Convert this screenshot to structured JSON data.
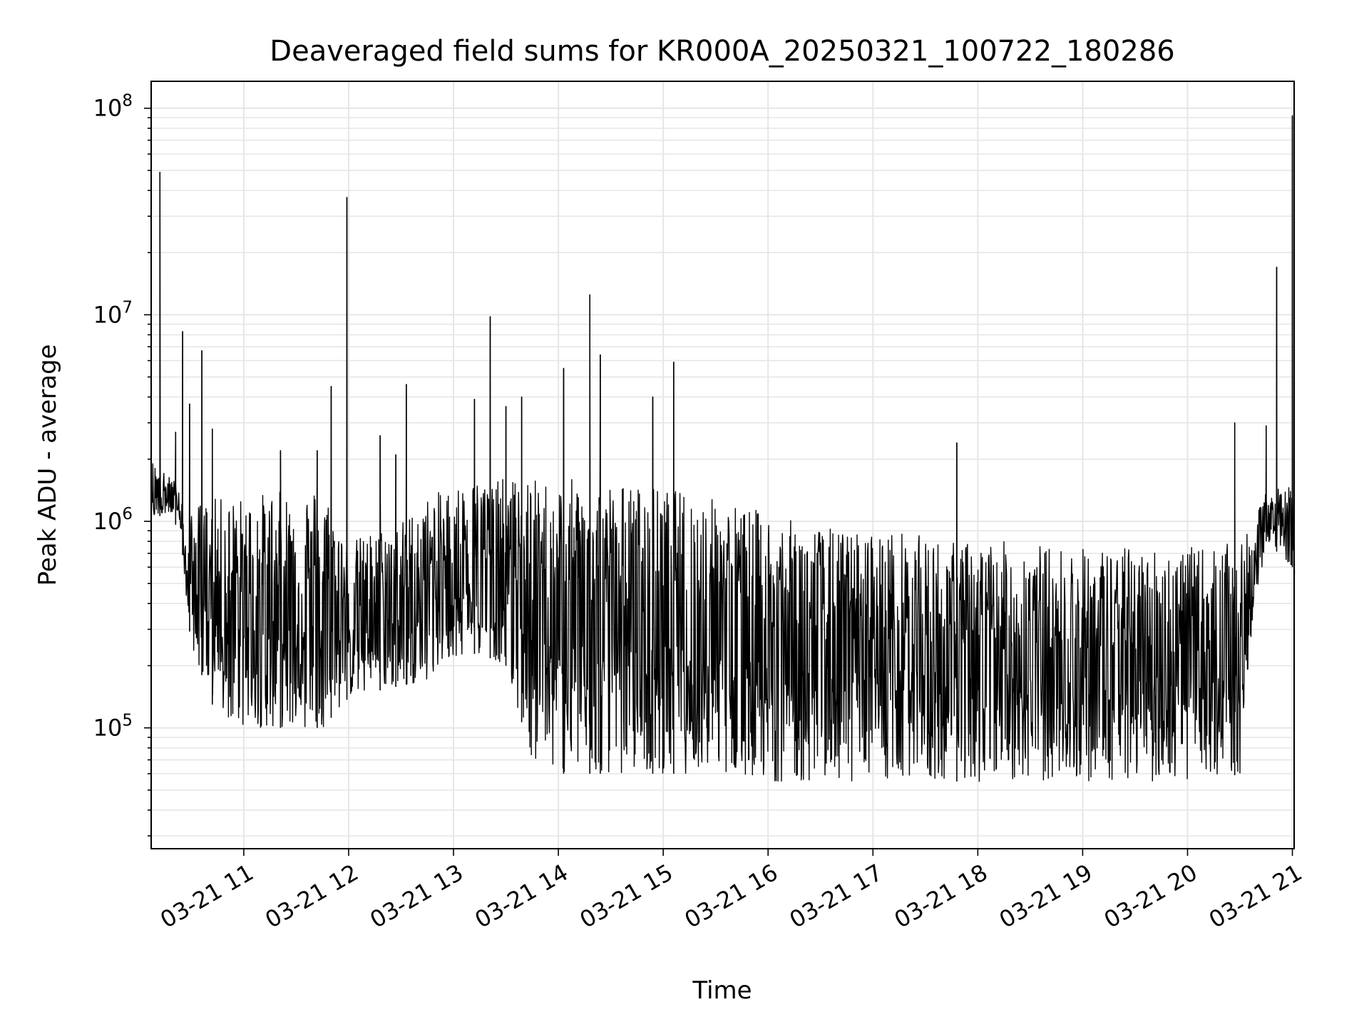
{
  "chart_data": {
    "type": "line",
    "title": "Deaveraged field sums for KR000A_20250321_100722_180286",
    "xlabel": "Time",
    "ylabel": "Peak ADU - average",
    "y_scale": "log",
    "ylim": [
      26000,
      135000000
    ],
    "xlim": [
      "03-21 10:07",
      "03-21 21:01"
    ],
    "grid": "on (major and minor)",
    "line_color": "#000000",
    "x_ticks": [
      "03-21 11",
      "03-21 12",
      "03-21 13",
      "03-21 14",
      "03-21 15",
      "03-21 16",
      "03-21 17",
      "03-21 18",
      "03-21 19",
      "03-21 20",
      "03-21 21"
    ],
    "y_ticks": [
      {
        "base": "10",
        "exp": "5",
        "value": 100000
      },
      {
        "base": "10",
        "exp": "6",
        "value": 1000000
      },
      {
        "base": "10",
        "exp": "7",
        "value": 10000000
      },
      {
        "base": "10",
        "exp": "8",
        "value": 100000000
      }
    ],
    "series": [
      {
        "envelope_hours": [
          10.12,
          10.25,
          10.4,
          10.45,
          10.5,
          10.75,
          11.0,
          11.25,
          11.5,
          11.75,
          12.0,
          12.25,
          12.5,
          12.75,
          13.0,
          13.25,
          13.5,
          13.75,
          14.0,
          14.25,
          14.5,
          14.75,
          15.0,
          15.25,
          15.5,
          15.75,
          16.0,
          16.25,
          16.5,
          16.75,
          17.0,
          17.25,
          17.5,
          17.75,
          18.0,
          18.25,
          18.5,
          18.75,
          19.0,
          19.25,
          19.5,
          19.75,
          20.0,
          20.25,
          20.5,
          20.6,
          20.75,
          21.0,
          21.02
        ],
        "envelope_low": [
          1000000,
          1100000,
          900000,
          400000,
          250000,
          110000,
          100000,
          100000,
          100000,
          100000,
          140000,
          150000,
          160000,
          170000,
          220000,
          230000,
          200000,
          70000,
          60000,
          60000,
          60000,
          60000,
          60000,
          60000,
          60000,
          60000,
          55000,
          55000,
          55000,
          55000,
          55000,
          55000,
          55000,
          55000,
          55000,
          55000,
          55000,
          55000,
          55000,
          55000,
          55000,
          55000,
          55000,
          55000,
          60000,
          250000,
          800000,
          600000,
          350000
        ],
        "envelope_high": [
          2000000,
          1700000,
          1500000,
          700000,
          1200000,
          1300000,
          1300000,
          1400000,
          1400000,
          1500000,
          800000,
          900000,
          1000000,
          1300000,
          1500000,
          1600000,
          1600000,
          1600000,
          1600000,
          1600000,
          1550000,
          1500000,
          1450000,
          1400000,
          1300000,
          1200000,
          1100000,
          1000000,
          950000,
          900000,
          900000,
          900000,
          850000,
          800000,
          800000,
          800000,
          800000,
          750000,
          750000,
          750000,
          750000,
          750000,
          750000,
          750000,
          800000,
          900000,
          1400000,
          1500000,
          1500000
        ],
        "spikes": [
          {
            "t": "10:12",
            "v": 49000000
          },
          {
            "t": "10:21",
            "v": 2700000
          },
          {
            "t": "10:25",
            "v": 8300000
          },
          {
            "t": "10:29",
            "v": 3700000
          },
          {
            "t": "10:36",
            "v": 6700000
          },
          {
            "t": "10:42",
            "v": 2800000
          },
          {
            "t": "11:21",
            "v": 2200000
          },
          {
            "t": "11:42",
            "v": 2200000
          },
          {
            "t": "11:50",
            "v": 4500000
          },
          {
            "t": "11:59",
            "v": 37000000
          },
          {
            "t": "12:18",
            "v": 2600000
          },
          {
            "t": "12:27",
            "v": 2100000
          },
          {
            "t": "12:33",
            "v": 4600000
          },
          {
            "t": "13:12",
            "v": 3900000
          },
          {
            "t": "13:21",
            "v": 9800000
          },
          {
            "t": "13:30",
            "v": 3600000
          },
          {
            "t": "13:39",
            "v": 4000000
          },
          {
            "t": "14:03",
            "v": 5500000
          },
          {
            "t": "14:18",
            "v": 12500000
          },
          {
            "t": "14:24",
            "v": 6400000
          },
          {
            "t": "14:54",
            "v": 4000000
          },
          {
            "t": "15:06",
            "v": 5900000
          },
          {
            "t": "17:48",
            "v": 2400000
          },
          {
            "t": "20:27",
            "v": 3000000
          },
          {
            "t": "20:45",
            "v": 2900000
          },
          {
            "t": "20:51",
            "v": 17000000
          },
          {
            "t": "21:00",
            "v": 92000000
          }
        ]
      }
    ]
  }
}
